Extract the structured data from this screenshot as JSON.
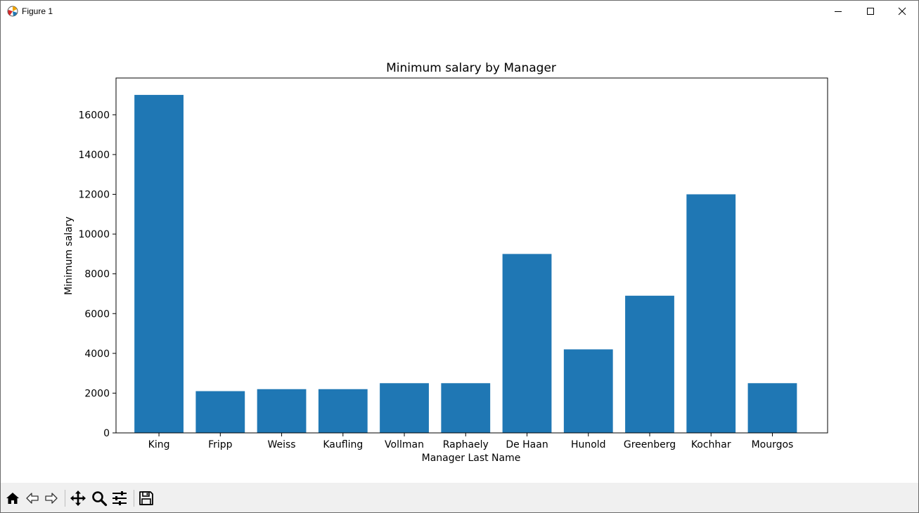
{
  "window": {
    "title": "Figure 1",
    "icons": {
      "app": "matplotlib-icon",
      "minimize": "minimize-icon",
      "maximize": "maximize-icon",
      "close": "close-icon"
    }
  },
  "toolbar": {
    "buttons": [
      {
        "name": "home-button",
        "icon": "home-icon"
      },
      {
        "name": "back-button",
        "icon": "arrow-left-icon"
      },
      {
        "name": "forward-button",
        "icon": "arrow-right-icon"
      },
      {
        "name": "pan-button",
        "icon": "move-icon"
      },
      {
        "name": "zoom-button",
        "icon": "magnifier-icon"
      },
      {
        "name": "configure-subplots-button",
        "icon": "sliders-icon"
      },
      {
        "name": "save-button",
        "icon": "floppy-disk-icon"
      }
    ]
  },
  "chart_data": {
    "type": "bar",
    "title": "Minimum salary by Manager",
    "xlabel": "Manager Last Name",
    "ylabel": "Minimum salary",
    "categories": [
      "King",
      "Fripp",
      "Weiss",
      "Kaufling",
      "Vollman",
      "Raphaely",
      "De Haan",
      "Hunold",
      "Greenberg",
      "Kochhar",
      "Mourgos"
    ],
    "values": [
      17000,
      2100,
      2200,
      2200,
      2500,
      2500,
      9000,
      4200,
      6900,
      12000,
      2500
    ],
    "yticks": [
      0,
      2000,
      4000,
      6000,
      8000,
      10000,
      12000,
      14000,
      16000
    ],
    "ylim": [
      0,
      17850
    ],
    "color": "#1f77b4",
    "grid": false,
    "legend": "none"
  }
}
